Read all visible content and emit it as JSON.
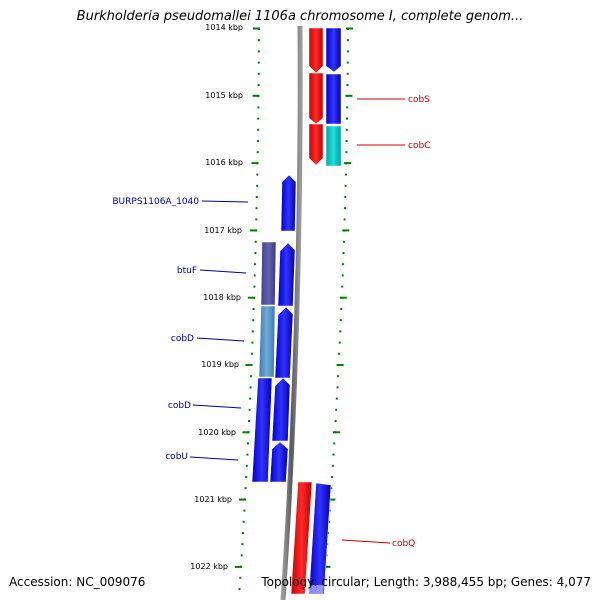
{
  "title": "Burkholderia pseudomallei 1106a chromosome I, complete genom...",
  "footer": {
    "accession": "Accession: NC_009076",
    "summary": "Topology: circular; Length: 3,988,455 bp; Genes: 4,077"
  },
  "axis": {
    "tick_labels": [
      "1014 kbp",
      "1015 kbp",
      "1016 kbp",
      "1017 kbp",
      "1018 kbp",
      "1019 kbp",
      "1020 kbp",
      "1021 kbp",
      "1022 kbp"
    ]
  },
  "colors": {
    "forward_gene": "#0000ff",
    "reverse_gene": "#ff0000",
    "cyan_gene": "#00c8c8",
    "purple_gene": "#5050a0",
    "steel_gene": "#5090c0",
    "backbone": "#808080",
    "tick": "#008000",
    "label_blue": "#000099",
    "label_red": "#cc0000"
  },
  "genes_left": [
    {
      "name": "BURPS1106A_1040"
    },
    {
      "name": "btuF"
    },
    {
      "name": "cobD"
    },
    {
      "name": "cobD"
    },
    {
      "name": "cobU"
    }
  ],
  "genes_right": [
    {
      "name": "cobS"
    },
    {
      "name": "cobC"
    },
    {
      "name": "cobQ"
    }
  ]
}
